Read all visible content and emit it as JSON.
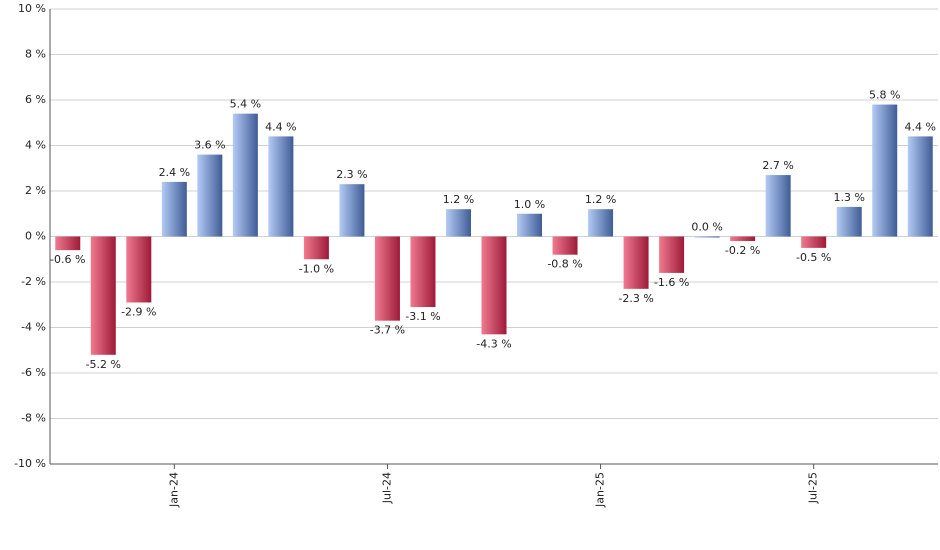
{
  "chart_data": {
    "type": "bar",
    "categories": [
      null,
      null,
      null,
      "Jan-24",
      null,
      null,
      null,
      null,
      null,
      "Jul-24",
      null,
      null,
      null,
      null,
      null,
      "Jan-25",
      null,
      null,
      null,
      null,
      null,
      "Jul-25",
      null,
      null,
      null
    ],
    "values": [
      -0.6,
      -5.2,
      -2.9,
      2.4,
      3.6,
      5.4,
      4.4,
      -1.0,
      2.3,
      -3.7,
      -3.1,
      1.2,
      -4.3,
      1.0,
      -0.8,
      1.2,
      -2.3,
      -1.6,
      0.0,
      -0.2,
      2.7,
      -0.5,
      1.3,
      5.8,
      4.4
    ],
    "value_labels": [
      "-0.6 %",
      "-5.2 %",
      "-2.9 %",
      "2.4 %",
      "3.6 %",
      "5.4 %",
      "4.4 %",
      "-1.0 %",
      "2.3 %",
      "-3.7 %",
      "-3.1 %",
      "1.2 %",
      "-4.3 %",
      "1.0 %",
      "-0.8 %",
      "1.2 %",
      "-2.3 %",
      "-1.6 %",
      "0.0 %",
      "-0.2 %",
      "2.7 %",
      "-0.5 %",
      "1.3 %",
      "5.8 %",
      "4.4 %"
    ],
    "positive_colors": [
      "#b3cbf5",
      "#3f5c96"
    ],
    "negative_colors": [
      "#f07a90",
      "#9e1a38"
    ],
    "ylim": [
      -10,
      10
    ],
    "yticks": [
      {
        "value": -10,
        "label": "-10 %"
      },
      {
        "value": -8,
        "label": "-8 %"
      },
      {
        "value": -6,
        "label": "-6 %"
      },
      {
        "value": -4,
        "label": "-4 %"
      },
      {
        "value": -2,
        "label": "-2 %"
      },
      {
        "value": 0,
        "label": "0 %"
      },
      {
        "value": 2,
        "label": "2 %"
      },
      {
        "value": 4,
        "label": "4 %"
      },
      {
        "value": 6,
        "label": "6 %"
      },
      {
        "value": 8,
        "label": "8 %"
      },
      {
        "value": 10,
        "label": "10 %"
      }
    ],
    "grid": true
  }
}
